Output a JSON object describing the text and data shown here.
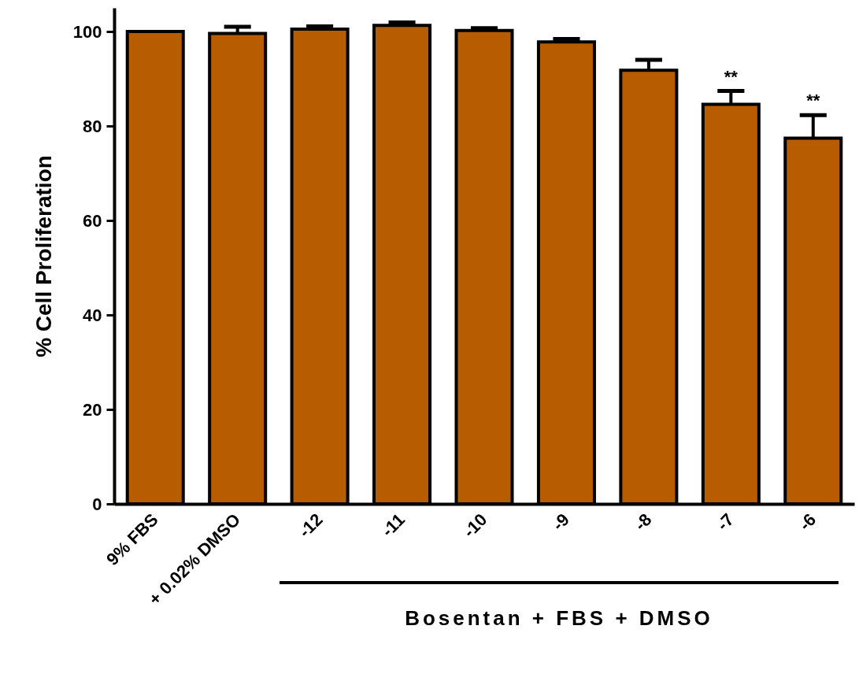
{
  "chart_data": {
    "type": "bar",
    "ylabel": "% Cell Proliferation",
    "categories": [
      "9% FBS",
      "+ 0.02% DMSO",
      "-12",
      "-11",
      "-10",
      "-9",
      "-8",
      "-7",
      "-6"
    ],
    "values": [
      100,
      99.6,
      100.5,
      101.3,
      100.2,
      97.8,
      91.8,
      84.6,
      77.4
    ],
    "errors": [
      null,
      [
        99.6,
        101
      ],
      [
        100.5,
        101.1
      ],
      [
        101.3,
        101.9
      ],
      [
        100.2,
        100.7
      ],
      [
        97.8,
        98.4
      ],
      [
        91.8,
        94
      ],
      [
        84.6,
        87.4
      ],
      [
        77.4,
        82.3
      ]
    ],
    "color": "#b85c00",
    "ylim": [
      0,
      105
    ],
    "yticks": [
      0,
      20,
      40,
      60,
      80,
      100
    ],
    "grid": false,
    "annotations": [
      {
        "text": "**",
        "x": "-7",
        "y": 87.4
      },
      {
        "text": "**",
        "x": "-6",
        "y": 82.3
      },
      "Bosentan + FBS + DMSO"
    ]
  }
}
